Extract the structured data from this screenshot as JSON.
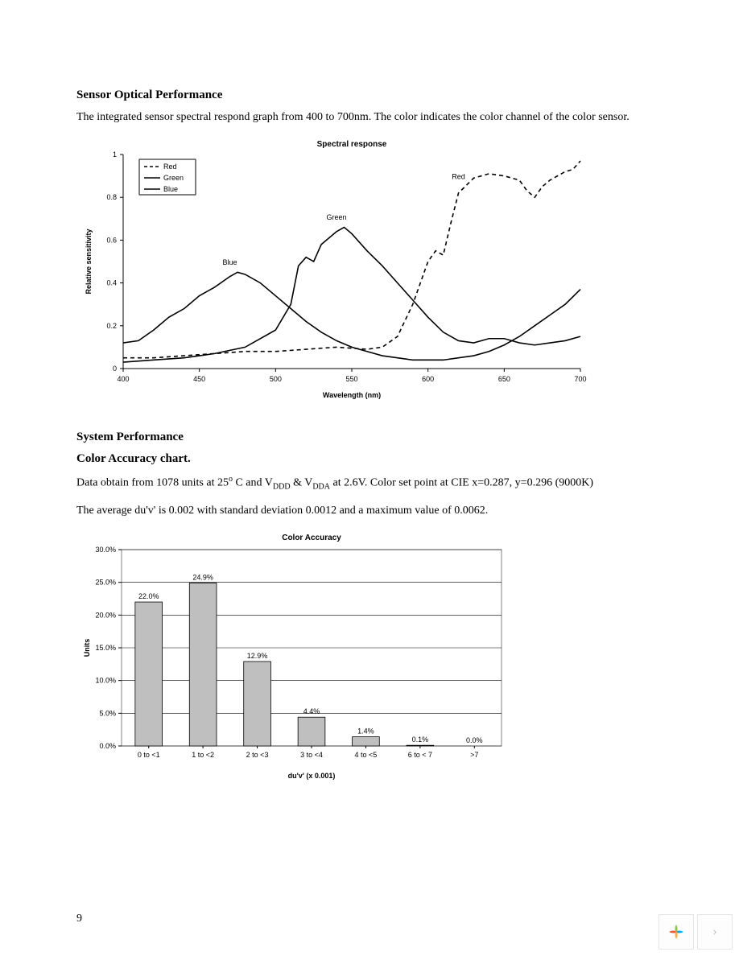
{
  "section1": {
    "heading": "Sensor Optical Performance",
    "para": "The integrated sensor spectral respond graph from 400 to 700nm.  The color indicates the color channel of the color sensor."
  },
  "spectral_chart": {
    "type": "line",
    "title": "Spectral response",
    "title_fontsize": 10,
    "xlabel": "Wavelength (nm)",
    "ylabel": "Relative sensitivity",
    "axis_label_fontsize": 9,
    "tick_fontsize": 9,
    "xlim": [
      400,
      700
    ],
    "ylim": [
      0,
      1
    ],
    "xtick_step": 50,
    "ytick_step": 0.2,
    "grid": false,
    "background_color": "#ffffff",
    "axis_color": "#000000",
    "line_color": "#000000",
    "line_width": 1.6,
    "legend": {
      "position": "top-left",
      "border_color": "#000000",
      "items": [
        "Red",
        "Green",
        "Blue"
      ],
      "styles": [
        "dashed",
        "solid",
        "solid"
      ]
    },
    "series_annotations": [
      {
        "label": "Red",
        "x": 620,
        "y": 0.87
      },
      {
        "label": "Green",
        "x": 540,
        "y": 0.68
      },
      {
        "label": "Blue",
        "x": 470,
        "y": 0.47
      }
    ],
    "series": {
      "red": {
        "dash": "5,4",
        "points": [
          [
            400,
            0.05
          ],
          [
            420,
            0.05
          ],
          [
            440,
            0.06
          ],
          [
            460,
            0.07
          ],
          [
            480,
            0.08
          ],
          [
            500,
            0.08
          ],
          [
            520,
            0.09
          ],
          [
            540,
            0.1
          ],
          [
            560,
            0.09
          ],
          [
            570,
            0.1
          ],
          [
            580,
            0.15
          ],
          [
            590,
            0.3
          ],
          [
            600,
            0.5
          ],
          [
            605,
            0.55
          ],
          [
            610,
            0.53
          ],
          [
            615,
            0.68
          ],
          [
            620,
            0.82
          ],
          [
            630,
            0.89
          ],
          [
            640,
            0.91
          ],
          [
            650,
            0.9
          ],
          [
            660,
            0.88
          ],
          [
            665,
            0.83
          ],
          [
            670,
            0.8
          ],
          [
            675,
            0.85
          ],
          [
            680,
            0.88
          ],
          [
            690,
            0.92
          ],
          [
            695,
            0.93
          ],
          [
            700,
            0.97
          ]
        ]
      },
      "green": {
        "dash": "none",
        "points": [
          [
            400,
            0.03
          ],
          [
            420,
            0.04
          ],
          [
            440,
            0.05
          ],
          [
            460,
            0.07
          ],
          [
            480,
            0.1
          ],
          [
            500,
            0.18
          ],
          [
            510,
            0.3
          ],
          [
            515,
            0.48
          ],
          [
            520,
            0.52
          ],
          [
            525,
            0.5
          ],
          [
            530,
            0.58
          ],
          [
            540,
            0.64
          ],
          [
            545,
            0.66
          ],
          [
            550,
            0.63
          ],
          [
            560,
            0.55
          ],
          [
            570,
            0.48
          ],
          [
            580,
            0.4
          ],
          [
            590,
            0.32
          ],
          [
            600,
            0.24
          ],
          [
            610,
            0.17
          ],
          [
            620,
            0.13
          ],
          [
            630,
            0.12
          ],
          [
            640,
            0.14
          ],
          [
            650,
            0.14
          ],
          [
            660,
            0.12
          ],
          [
            670,
            0.11
          ],
          [
            680,
            0.12
          ],
          [
            690,
            0.13
          ],
          [
            700,
            0.15
          ]
        ]
      },
      "blue": {
        "dash": "none",
        "points": [
          [
            400,
            0.12
          ],
          [
            410,
            0.13
          ],
          [
            420,
            0.18
          ],
          [
            430,
            0.24
          ],
          [
            440,
            0.28
          ],
          [
            450,
            0.34
          ],
          [
            460,
            0.38
          ],
          [
            470,
            0.43
          ],
          [
            475,
            0.45
          ],
          [
            480,
            0.44
          ],
          [
            490,
            0.4
          ],
          [
            500,
            0.34
          ],
          [
            510,
            0.28
          ],
          [
            520,
            0.22
          ],
          [
            530,
            0.17
          ],
          [
            540,
            0.13
          ],
          [
            550,
            0.1
          ],
          [
            560,
            0.08
          ],
          [
            570,
            0.06
          ],
          [
            580,
            0.05
          ],
          [
            590,
            0.04
          ],
          [
            600,
            0.04
          ],
          [
            610,
            0.04
          ],
          [
            620,
            0.05
          ],
          [
            630,
            0.06
          ],
          [
            640,
            0.08
          ],
          [
            650,
            0.11
          ],
          [
            660,
            0.15
          ],
          [
            670,
            0.2
          ],
          [
            680,
            0.25
          ],
          [
            690,
            0.3
          ],
          [
            700,
            0.37
          ]
        ]
      }
    }
  },
  "section2": {
    "heading": "System Performance",
    "subheading": "Color Accuracy chart.",
    "para1_prefix": "Data obtain from 1078 units at 25",
    "para1_mid1": " C and V",
    "para1_sub1": "DDD",
    "para1_amp": "  &  ",
    "para1_v2": "V",
    "para1_sub2": "DDA",
    "para1_suffix": " at 2.6V. Color set point at CIE x=0.287, y=0.296 (9000K)",
    "para2": "The average du'v' is 0.002 with standard deviation 0.0012 and a maximum value of 0.0062."
  },
  "bar_chart": {
    "type": "bar",
    "title": "Color Accuracy",
    "title_fontsize": 10,
    "xlabel": "du'v'  (x 0.001)",
    "ylabel": "Units",
    "axis_label_fontsize": 9,
    "tick_fontsize": 9,
    "categories": [
      "0 to <1",
      "1 to <2",
      "2 to <3",
      "3 to <4",
      "4 to <5",
      "6 to < 7",
      ">7"
    ],
    "values": [
      22.0,
      24.9,
      12.9,
      4.4,
      1.4,
      0.1,
      0.0
    ],
    "value_labels": [
      "22.0%",
      "24.9%",
      "12.9%",
      "4.4%",
      "1.4%",
      "0.1%",
      "0.0%"
    ],
    "ylim": [
      0,
      30
    ],
    "ytick_step": 5,
    "ytick_format": "percent",
    "bar_fill": "#bfbfbf",
    "bar_border": "#000000",
    "bar_width": 0.5,
    "grid_color": "#000000",
    "background_color": "#ffffff",
    "plot_border_color": "#808080"
  },
  "page_number": "9"
}
